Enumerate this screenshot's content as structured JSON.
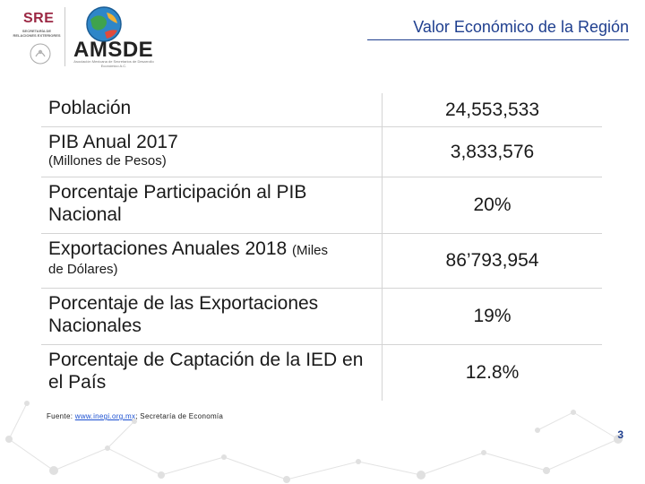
{
  "header": {
    "sre_logo": "SRE",
    "sre_subtitle": "SECRETARÍA DE RELACIONES EXTERIORES",
    "amsde_logo": "AMSDE",
    "amsde_subtitle": "Asociación Mexicana de Secretarios de Desarrollo Económico A.C.",
    "slide_title": "Valor Económico de la Región"
  },
  "rows": [
    {
      "label": "Población",
      "label_small": "",
      "label_small_block": "",
      "value": "24,553,533"
    },
    {
      "label": "PIB Anual 2017",
      "label_small": "",
      "label_small_block": "(Millones de Pesos)",
      "value": "3,833,576"
    },
    {
      "label": "Porcentaje Participación al PIB Nacional",
      "label_small": "",
      "label_small_block": "",
      "value": "20%"
    },
    {
      "label": "Exportaciones Anuales 2018 ",
      "label_small": "(Miles",
      "label_small_block": "de Dólares)",
      "value": "86’793,954"
    },
    {
      "label": "Porcentaje de las Exportaciones Nacionales",
      "label_small": "",
      "label_small_block": "",
      "value": "19%"
    },
    {
      "label": "Porcentaje de Captación de la IED en el País",
      "label_small": "",
      "label_small_block": "",
      "value": "12.8%"
    }
  ],
  "source": {
    "prefix": "Fuente: ",
    "link": "www.inegi.org.mx",
    "suffix": "; Secretaría de Economía"
  },
  "page_number": "3",
  "colors": {
    "title_blue": "#1f3f8f",
    "sre_red": "#9b2743",
    "link_blue": "#1a4fd1"
  }
}
